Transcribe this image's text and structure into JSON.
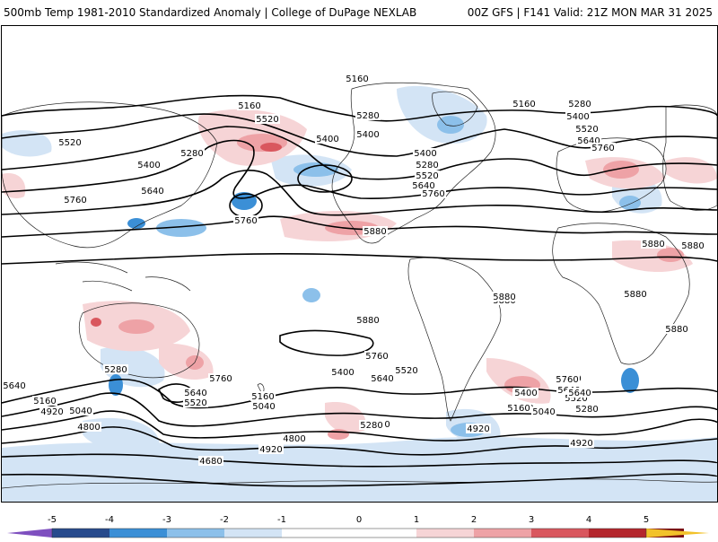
{
  "header": {
    "title": "500mb Temp 1981-2010 Standardized Anomaly | College of DuPage NEXLAB",
    "run_info": "00Z GFS | F141 Valid: 21Z MON MAR 31 2025"
  },
  "map": {
    "contour_labels": [
      "5160",
      "5160",
      "5280",
      "5520",
      "5400",
      "5520",
      "5280",
      "5400",
      "5640",
      "5760",
      "5760",
      "5400",
      "5160",
      "5280",
      "5400",
      "5520",
      "5640",
      "5760",
      "5280",
      "5400",
      "5520",
      "5640",
      "5760",
      "5880",
      "5880",
      "5880",
      "5880",
      "5880",
      "5880",
      "5880",
      "5760",
      "5400",
      "5520",
      "5640",
      "5760",
      "5280",
      "5640",
      "5520",
      "5160",
      "5040",
      "4920",
      "4800",
      "4680",
      "5760",
      "5640",
      "5160",
      "4920",
      "5040",
      "5400",
      "5640",
      "5520",
      "5280",
      "4920",
      "4920",
      "5400",
      "5520",
      "5640",
      "5760",
      "5160",
      "5040",
      "5280",
      "4800",
      "4920",
      "5880",
      "5280",
      "5160"
    ],
    "anomaly_colors": {
      "neg5": "#7e4fbf",
      "neg4": "#274a8c",
      "neg3": "#3b8fd6",
      "neg2": "#8cc0ea",
      "neg1": "#d3e4f5",
      "pos1": "#f6d4d6",
      "pos2": "#eea2a6",
      "pos3": "#d9575e",
      "pos4": "#b4262d",
      "pos5": "#7a1014",
      "pos6": "#f2c22a"
    }
  },
  "colorbar": {
    "ticks": [
      "-5",
      "-4",
      "-3",
      "-2",
      "-1",
      "0",
      "1",
      "2",
      "3",
      "4",
      "5"
    ]
  }
}
